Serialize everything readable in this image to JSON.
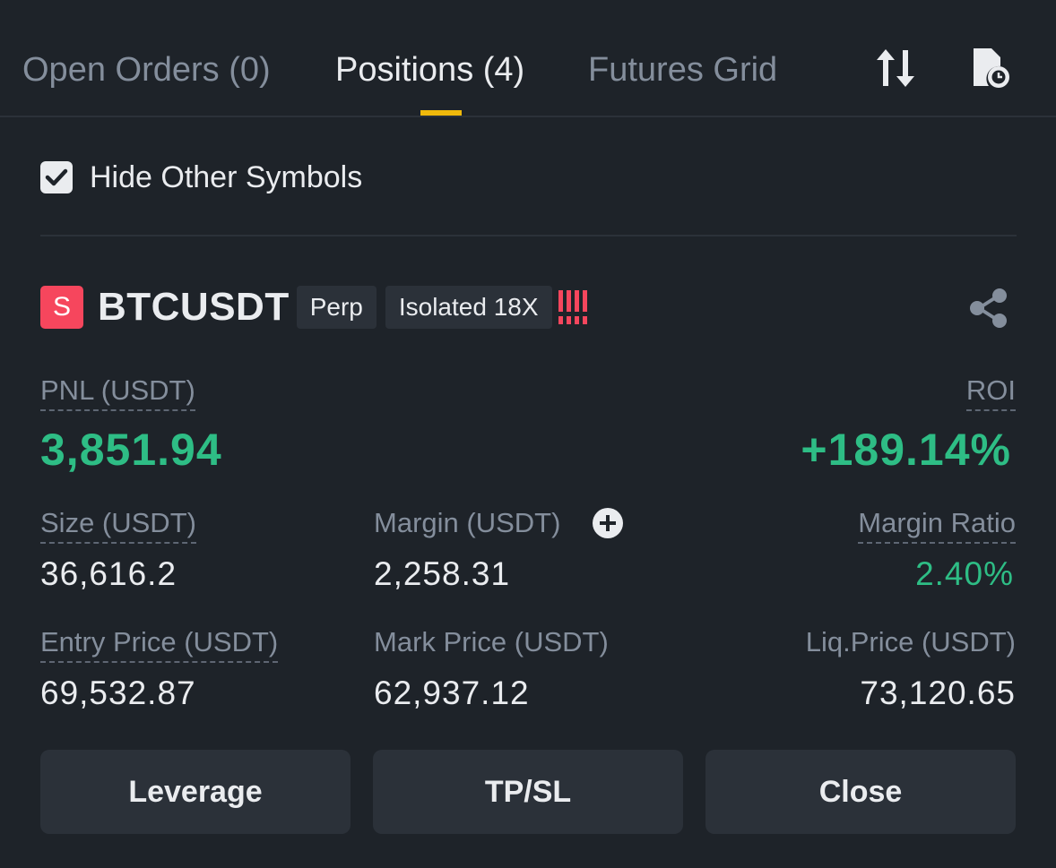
{
  "tabs": [
    {
      "label": "Open Orders (0)",
      "active": false
    },
    {
      "label": "Positions (4)",
      "active": true
    },
    {
      "label": "Futures Grid",
      "active": false
    }
  ],
  "toolbar_icons": [
    "sort-arrows-icon",
    "history-document-icon"
  ],
  "filter": {
    "hide_other_symbols_label": "Hide Other Symbols",
    "hide_other_symbols_checked": true
  },
  "position": {
    "side_badge": "S",
    "symbol": "BTCUSDT",
    "contract_type": "Perp",
    "margin_mode": "Isolated 18X",
    "risk_indicator": "!!!!",
    "pnl_label": "PNL (USDT)",
    "pnl_value": "3,851.94",
    "roi_label": "ROI",
    "roi_value": "+189.14%",
    "size_label": "Size (USDT)",
    "size_value": "36,616.2",
    "margin_label": "Margin (USDT)",
    "margin_value": "2,258.31",
    "margin_ratio_label": "Margin Ratio",
    "margin_ratio_value": "2.40%",
    "entry_price_label": "Entry Price (USDT)",
    "entry_price_value": "69,532.87",
    "mark_price_label": "Mark Price (USDT)",
    "mark_price_value": "62,937.12",
    "liq_price_label": "Liq.Price (USDT)",
    "liq_price_value": "73,120.65"
  },
  "actions": {
    "leverage": "Leverage",
    "tpsl": "TP/SL",
    "close": "Close"
  },
  "colors": {
    "background": "#1e2329",
    "accent": "#f0b90b",
    "positive": "#2ebd85",
    "negative": "#f6465d",
    "button_bg": "#2b3139",
    "muted_text": "#848e9c"
  }
}
